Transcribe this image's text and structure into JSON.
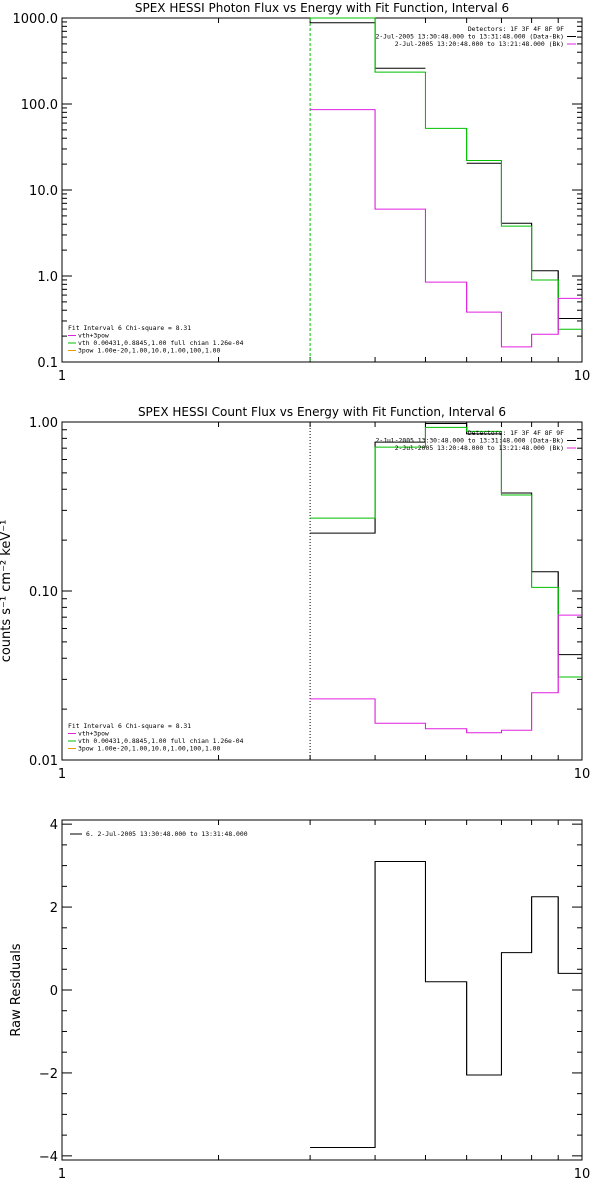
{
  "chart_data": [
    {
      "type": "line",
      "title": "SPEX HESSI Photon Flux vs Energy with Fit Function, Interval 6",
      "xlabel": "",
      "ylabel": "",
      "xscale": "log",
      "yscale": "log",
      "xlim": [
        1,
        10
      ],
      "ylim": [
        0.1,
        1000
      ],
      "x_ticks": [
        1,
        10
      ],
      "x_tick_labels": [
        "1",
        "10"
      ],
      "y_ticks": [
        0.1,
        1,
        10,
        100,
        1000
      ],
      "y_tick_labels": [
        "0.1",
        "1.0",
        "10.0",
        "100.0",
        "1000.0"
      ],
      "vline": 3,
      "vline_color": "#00c000",
      "vline_style": "dashed",
      "bin_edges": [
        3,
        4,
        5,
        6,
        7,
        8,
        9,
        10
      ],
      "series": [
        {
          "name": "data",
          "color": "#000000",
          "values": [
            880,
            260,
            null,
            20.5,
            4.1,
            1.15,
            0.32
          ]
        },
        {
          "name": "vth+3pow",
          "color": "#00c000",
          "values": [
            1050,
            235,
            52,
            22,
            3.8,
            0.9,
            0.24
          ]
        },
        {
          "name": "3pow",
          "color": "#e020e0",
          "values": [
            86,
            6,
            0.85,
            0.38,
            0.15,
            0.21,
            0.55
          ]
        }
      ],
      "legend_top": [
        {
          "text": "Detectors: 1F 3F 4F 8F 9F",
          "color": ""
        },
        {
          "text": "2-Jul-2005 13:30:48.000 to 13:31:48.000 (Data-Bk)",
          "color": "#000000"
        },
        {
          "text": "2-Jul-2005 13:20:48.000 to 13:21:48.000 (Bk)",
          "color": "#e020e0"
        }
      ],
      "legend_bottom": [
        {
          "text": "Fit Interval 6   Chi-square = 8.31",
          "color": ""
        },
        {
          "text": "vth+3pow",
          "color": "#e020e0"
        },
        {
          "text": "vth 0.00431,0.8845,1.00  full chian 1.26e-04",
          "color": "#00c000"
        },
        {
          "text": "3pow 1.00e-20,1.00,10.0,1.00,100,1.00",
          "color": "#e0a000"
        }
      ]
    },
    {
      "type": "line",
      "title": "SPEX HESSI Count Flux vs Energy with Fit Function, Interval 6",
      "xlabel": "",
      "ylabel": "counts s⁻¹ cm⁻² keV⁻¹",
      "xscale": "log",
      "yscale": "log",
      "xlim": [
        1,
        10
      ],
      "ylim": [
        0.01,
        1
      ],
      "x_ticks": [
        1,
        10
      ],
      "x_tick_labels": [
        "1",
        "10"
      ],
      "y_ticks": [
        0.01,
        0.1,
        1
      ],
      "y_tick_labels": [
        "0.01",
        "0.10",
        "1.00"
      ],
      "vline": 3,
      "vline_color": "#000000",
      "vline_style": "dotted",
      "bin_edges": [
        3,
        4,
        5,
        6,
        7,
        8,
        9,
        10
      ],
      "series": [
        {
          "name": "data",
          "color": "#000000",
          "values": [
            0.22,
            0.76,
            0.98,
            0.85,
            0.38,
            0.13,
            0.042
          ]
        },
        {
          "name": "vth+3pow",
          "color": "#00c000",
          "values": [
            0.27,
            0.71,
            0.93,
            0.88,
            0.37,
            0.105,
            0.031
          ]
        },
        {
          "name": "3pow",
          "color": "#e020e0",
          "values": [
            0.023,
            0.0165,
            0.0153,
            0.0145,
            0.015,
            0.025,
            0.072
          ]
        }
      ],
      "legend_top": [
        {
          "text": "Detectors: 1F 3F 4F 8F 9F",
          "color": ""
        },
        {
          "text": "2-Jul-2005 13:30:48.000 to 13:31:48.000 (Data-Bk)",
          "color": "#000000"
        },
        {
          "text": "2-Jul-2005 13:20:48.000 to 13:21:48.000 (Bk)",
          "color": "#e020e0"
        }
      ],
      "legend_bottom": [
        {
          "text": "Fit Interval 6   Chi-square = 8.31",
          "color": ""
        },
        {
          "text": "vth+3pow",
          "color": "#e020e0"
        },
        {
          "text": "vth 0.00431,0.8845,1.00  full chian 1.26e-04",
          "color": "#00c000"
        },
        {
          "text": "3pow 1.00e-20,1.00,10.0,1.00,100,1.00",
          "color": "#e0a000"
        }
      ]
    },
    {
      "type": "line",
      "title": "",
      "xlabel": "",
      "ylabel": "Raw Residuals",
      "xscale": "log",
      "yscale": "linear",
      "xlim": [
        1,
        10
      ],
      "ylim": [
        -4.1,
        4.1
      ],
      "x_ticks": [
        1,
        10
      ],
      "x_tick_labels": [
        "1",
        "10"
      ],
      "y_ticks": [
        -4,
        -2,
        0,
        2,
        4
      ],
      "y_tick_labels": [
        "−4",
        "−2",
        "0",
        "2",
        "4"
      ],
      "bin_edges": [
        3,
        4,
        5,
        6,
        7,
        8,
        9,
        10
      ],
      "series": [
        {
          "name": "6.  2-Jul-2005 13:30:48.000 to 13:31:48.000",
          "color": "#000000",
          "values": [
            -3.8,
            3.1,
            0.2,
            -2.05,
            0.9,
            2.25,
            0.4
          ]
        }
      ],
      "legend_top": [
        {
          "text": "6.  2-Jul-2005 13:30:48.000 to 13:31:48.000",
          "color": "#000000"
        }
      ]
    }
  ]
}
